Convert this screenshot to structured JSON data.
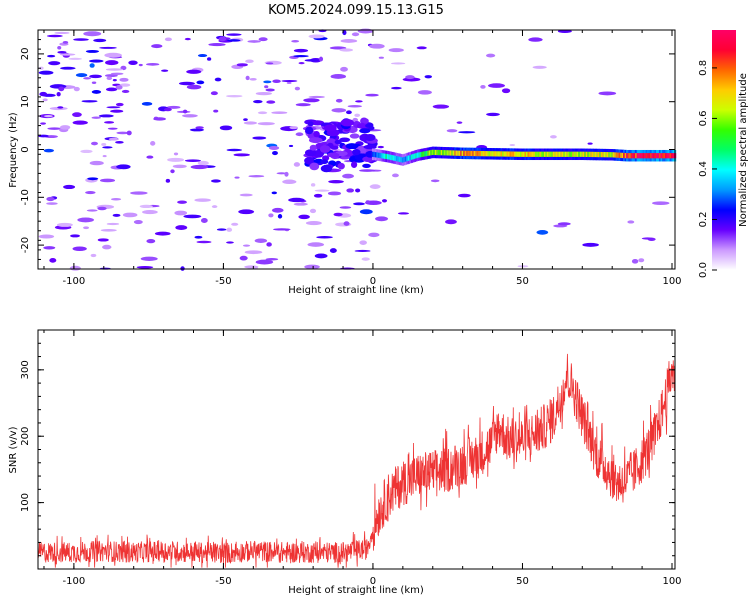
{
  "figure_title": "KOM5.2024.099.15.13.G15",
  "colors": {
    "snr_line": "#ee3333",
    "colormap": [
      "#ffffff",
      "#cc99ff",
      "#6600ff",
      "#0000ff",
      "#0099ff",
      "#00ffff",
      "#00ff66",
      "#33ff00",
      "#ccff00",
      "#ffcc00",
      "#ff6600",
      "#ff0033",
      "#ff0066"
    ]
  },
  "chart_data": [
    {
      "type": "heatmap",
      "title": "",
      "xlabel": "Height of straight line (km)",
      "ylabel": "Frequency (Hz)",
      "xlim": [
        -112,
        101
      ],
      "ylim": [
        -25,
        25
      ],
      "x_ticks": [
        {
          "value": -100,
          "label": "-100"
        },
        {
          "value": -50,
          "label": "-50"
        },
        {
          "value": 0,
          "label": "0"
        },
        {
          "value": 50,
          "label": "50"
        },
        {
          "value": 100,
          "label": "100"
        }
      ],
      "y_ticks": [
        {
          "value": -20,
          "label": "-20"
        },
        {
          "value": -10,
          "label": "-10"
        },
        {
          "value": 0,
          "label": "0"
        },
        {
          "value": 10,
          "label": "10"
        },
        {
          "value": 20,
          "label": "20"
        }
      ],
      "colorbar": {
        "label": "Normalized spectral amplitude",
        "range": [
          0,
          0.95
        ],
        "ticks": [
          {
            "value": 0.0,
            "label": "0.0"
          },
          {
            "value": 0.2,
            "label": "0.2"
          },
          {
            "value": 0.4,
            "label": "0.4"
          },
          {
            "value": 0.6,
            "label": "0.6"
          },
          {
            "value": 0.8,
            "label": "0.8"
          }
        ]
      },
      "ridge": {
        "description_values": "dominant spectral line near 0 Hz for heights 0 to 100 km",
        "x": [
          0,
          5,
          10,
          15,
          20,
          30,
          40,
          50,
          60,
          70,
          80,
          85,
          90,
          100
        ],
        "frequency": [
          -1.0,
          -1.5,
          -2.2,
          -1.2,
          -0.6,
          -0.8,
          -0.9,
          -1.0,
          -1.0,
          -1.0,
          -1.1,
          -1.3,
          -1.3,
          -1.3
        ],
        "amplitude": [
          0.25,
          0.45,
          0.3,
          0.45,
          0.6,
          0.75,
          0.7,
          0.7,
          0.65,
          0.65,
          0.7,
          0.85,
          0.9,
          0.95
        ]
      },
      "noise_amplitude_range": [
        0.05,
        0.2
      ]
    },
    {
      "type": "line",
      "title": "",
      "xlabel": "Height of straight line (km)",
      "ylabel": "SNR (v/v)",
      "xlim": [
        -112,
        101
      ],
      "ylim": [
        0,
        360
      ],
      "x_ticks": [
        {
          "value": -100,
          "label": "-100"
        },
        {
          "value": -50,
          "label": "-50"
        },
        {
          "value": 0,
          "label": "0"
        },
        {
          "value": 50,
          "label": "50"
        },
        {
          "value": 100,
          "label": "100"
        }
      ],
      "y_ticks": [
        {
          "value": 100,
          "label": "100"
        },
        {
          "value": 200,
          "label": "200"
        },
        {
          "value": 300,
          "label": "300"
        }
      ],
      "series": [
        {
          "x": [
            -112,
            -100,
            -90,
            -80,
            -70,
            -60,
            -50,
            -40,
            -30,
            -20,
            -10,
            -2,
            0,
            2,
            5,
            10,
            15,
            20,
            25,
            30,
            35,
            40,
            42,
            45,
            50,
            55,
            60,
            63,
            65,
            67,
            70,
            75,
            80,
            82,
            85,
            88,
            92,
            95,
            98,
            100,
            101
          ],
          "values": [
            25,
            25,
            27,
            25,
            27,
            25,
            24,
            27,
            25,
            25,
            25,
            30,
            60,
            85,
            110,
            130,
            140,
            145,
            150,
            160,
            170,
            190,
            215,
            195,
            195,
            205,
            225,
            260,
            295,
            270,
            230,
            170,
            140,
            130,
            135,
            150,
            180,
            210,
            260,
            300,
            290
          ]
        }
      ]
    }
  ]
}
